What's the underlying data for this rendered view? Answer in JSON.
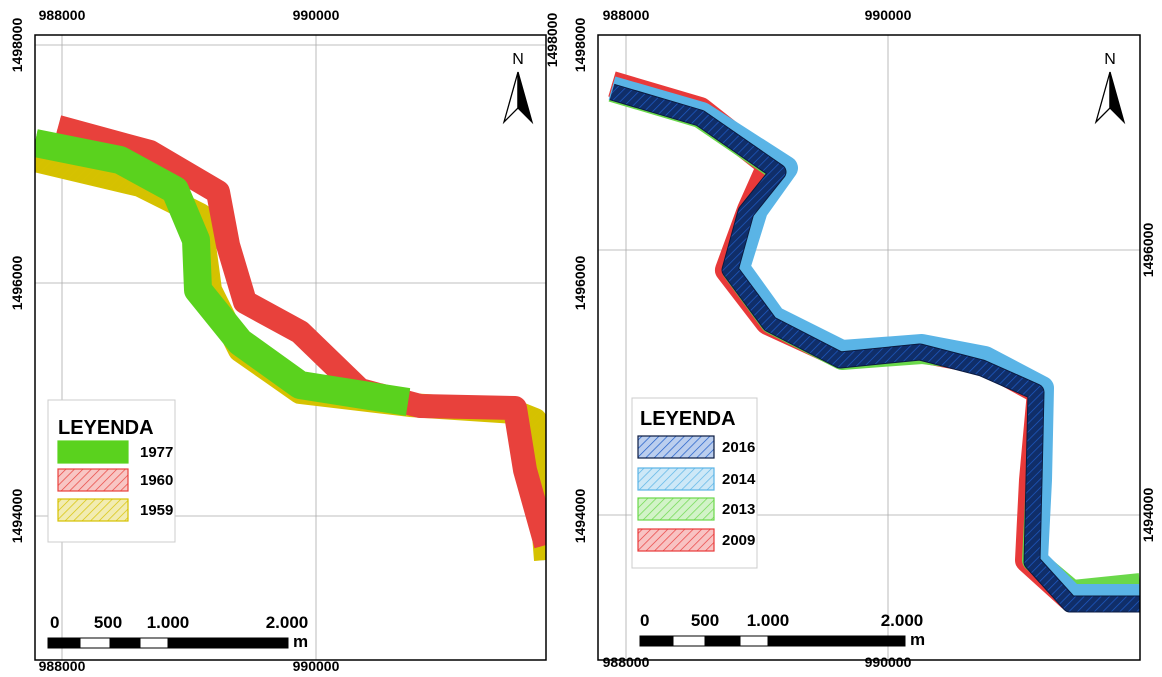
{
  "panels": [
    {
      "x_labels_top": [
        "988000",
        "990000"
      ],
      "x_labels_bottom": [
        "988000",
        "990000"
      ],
      "y_labels_left": [
        "1498000",
        "1496000",
        "1494000"
      ],
      "y_labels_right": [
        "1498000"
      ],
      "north": "N",
      "legend": {
        "title": "LEYENDA",
        "items": [
          {
            "label": "1977",
            "color": "#5ad21e",
            "hatched": false
          },
          {
            "label": "1960",
            "color": "#e8413c",
            "hatched": true
          },
          {
            "label": "1959",
            "color": "#d6c200",
            "hatched": true
          }
        ]
      },
      "scale": {
        "labels": [
          "0",
          "500",
          "1.000",
          "2.000"
        ],
        "unit": "m"
      }
    },
    {
      "x_labels_top": [
        "988000",
        "990000"
      ],
      "x_labels_bottom": [
        "988000",
        "990000"
      ],
      "y_labels_left": [
        "1498000",
        "1496000",
        "1494000"
      ],
      "y_labels_right": [
        "1496000",
        "1494000"
      ],
      "north": "N",
      "legend": {
        "title": "LEYENDA",
        "items": [
          {
            "label": "2016",
            "color": "#1f5cc8",
            "hatched": true
          },
          {
            "label": "2014",
            "color": "#5ab4e6",
            "hatched": true
          },
          {
            "label": "2013",
            "color": "#6ad84a",
            "hatched": true
          },
          {
            "label": "2009",
            "color": "#e83a3a",
            "hatched": true
          }
        ]
      },
      "scale": {
        "labels": [
          "0",
          "500",
          "1.000",
          "2.000"
        ],
        "unit": "m"
      }
    }
  ]
}
